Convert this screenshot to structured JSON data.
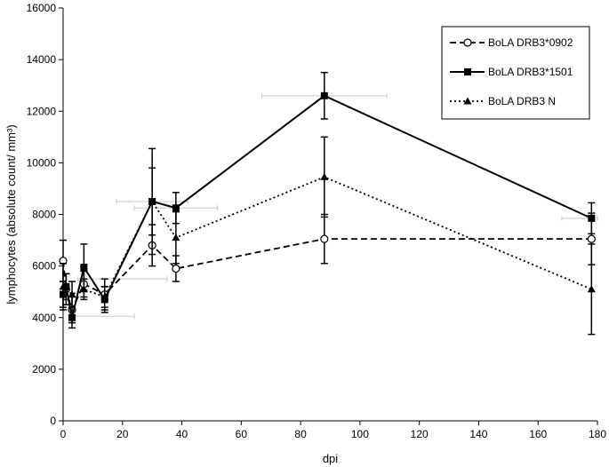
{
  "chart_data": {
    "type": "line",
    "title": "",
    "xlabel": "dpi",
    "ylabel": "lymphocytes (absolute count/ mm³)",
    "xlim": [
      0,
      180
    ],
    "ylim": [
      0,
      16000
    ],
    "xticks": [
      0,
      20,
      40,
      60,
      80,
      100,
      120,
      140,
      160,
      180
    ],
    "yticks": [
      0,
      2000,
      4000,
      6000,
      8000,
      10000,
      12000,
      14000,
      16000
    ],
    "grid": false,
    "legend": "top-right",
    "series": [
      {
        "name": "BoLA DRB3*0902",
        "line_style": "dashed",
        "marker": "open-circle",
        "points": [
          {
            "x": 0,
            "y": 6200,
            "err": 800
          },
          {
            "x": 1,
            "y": 5100,
            "err": 600
          },
          {
            "x": 3,
            "y": 4300,
            "err": 500
          },
          {
            "x": 7,
            "y": 5300,
            "err": 500
          },
          {
            "x": 14,
            "y": 4900,
            "err": 600
          },
          {
            "x": 30,
            "y": 6800,
            "err": 800
          },
          {
            "x": 38,
            "y": 5900,
            "err": 500
          },
          {
            "x": 88,
            "y": 7050,
            "err": 950
          },
          {
            "x": 178,
            "y": 7050,
            "err": 1000
          }
        ]
      },
      {
        "name": "BoLA DRB3*1501",
        "line_style": "solid",
        "marker": "filled-square",
        "points": [
          {
            "x": 0,
            "y": 4900,
            "err": 500
          },
          {
            "x": 1,
            "y": 5200,
            "err": 500
          },
          {
            "x": 3,
            "y": 4000,
            "err": 400
          },
          {
            "x": 7,
            "y": 5950,
            "err": 900
          },
          {
            "x": 14,
            "y": 4700,
            "err": 500
          },
          {
            "x": 30,
            "y": 8500,
            "err": 2050
          },
          {
            "x": 38,
            "y": 8250,
            "err": 600
          },
          {
            "x": 88,
            "y": 12600,
            "err": 900
          },
          {
            "x": 178,
            "y": 7850,
            "err": 600
          }
        ]
      },
      {
        "name": "BoLA DRB3 N",
        "line_style": "dotted",
        "marker": "filled-triangle",
        "points": [
          {
            "x": 0,
            "y": 5200,
            "err": 900
          },
          {
            "x": 3,
            "y": 4900,
            "err": 500
          },
          {
            "x": 7,
            "y": 5100,
            "err": 400
          },
          {
            "x": 14,
            "y": 4800,
            "err": 400
          },
          {
            "x": 30,
            "y": 8500,
            "err": 1300
          },
          {
            "x": 38,
            "y": 7100,
            "err": 1000
          },
          {
            "x": 88,
            "y": 9450,
            "err": 1550
          },
          {
            "x": 178,
            "y": 5100,
            "err": 1750
          }
        ]
      }
    ],
    "x_error_bars": [
      {
        "x": 14,
        "y": 4050,
        "xerr": 10
      },
      {
        "x": 20,
        "y": 5500,
        "xerr": 15
      },
      {
        "x": 30,
        "y": 8500,
        "xerr": 12
      },
      {
        "x": 38,
        "y": 8250,
        "xerr": 14
      },
      {
        "x": 88,
        "y": 12600,
        "xerr": 21
      },
      {
        "x": 178,
        "y": 7850,
        "xerr": 10
      }
    ]
  }
}
